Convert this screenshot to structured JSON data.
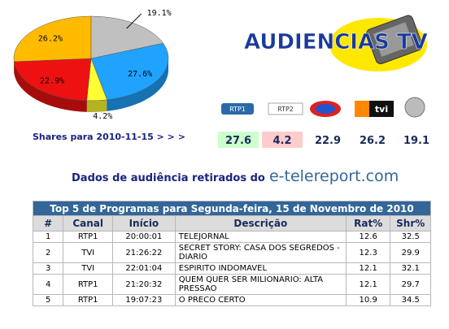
{
  "chart_data": {
    "type": "pie",
    "values": [
      27.6,
      4.2,
      22.9,
      26.2,
      19.1
    ],
    "value_labels": [
      "27.6%",
      "4.2%",
      "22.9%",
      "26.2%",
      "19.1%"
    ],
    "colors": [
      "#1fa3ff",
      "#ffff33",
      "#ee1111",
      "#ffbb00",
      "#c0c0c0"
    ]
  },
  "logo": {
    "title": "AUDIENCIAS TV"
  },
  "channel_logos": {
    "rtp1": "RTP1",
    "rtp2": "RTP2",
    "tvi": "tvi"
  },
  "shares_link": "Shares para 2010-11-15 > > >",
  "source": {
    "text": "Dados de audiência retirados do",
    "site": "e-telereport.com"
  },
  "table": {
    "title": "Top 5 de Programas para Segunda-feira, 15 de Novembro de 2010",
    "headers": [
      "#",
      "Canal",
      "Início",
      "Descrição",
      "Rat%",
      "Shr%"
    ],
    "rows": [
      [
        1,
        "RTP1",
        "20:00:01",
        "TELEJORNAL",
        12.6,
        32.5
      ],
      [
        2,
        "TVI",
        "21:26:22",
        "SECRET STORY: CASA DOS SEGREDOS - DIARIO",
        12.3,
        29.9
      ],
      [
        3,
        "TVI",
        "22:01:04",
        "ESPIRITO INDOMAVEL",
        12.1,
        32.1
      ],
      [
        4,
        "RTP1",
        "21:20:32",
        "QUEM QUER SER MILIONARIO: ALTA PRESSAO",
        12.1,
        29.7
      ],
      [
        5,
        "RTP1",
        "19:07:23",
        "O PRECO CERTO",
        10.9,
        34.5
      ]
    ]
  }
}
